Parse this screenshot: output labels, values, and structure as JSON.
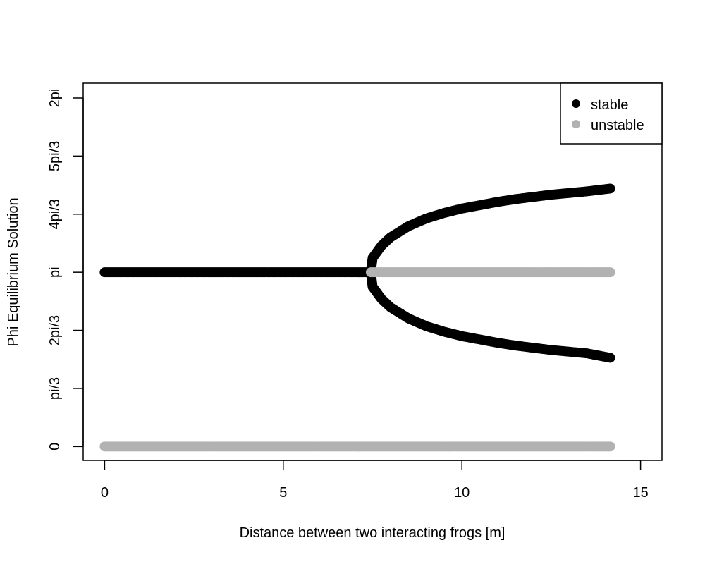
{
  "chart_data": {
    "type": "scatter",
    "title": "",
    "xlabel": "Distance between two interacting frogs [m]",
    "ylabel": "Phi Equilibrium Solution",
    "xlim": [
      -0.6,
      15.6
    ],
    "ylim": [
      -0.25,
      6.55
    ],
    "grid": false,
    "legend_position": "top-right",
    "x_ticks": [
      {
        "value": 0,
        "label": "0"
      },
      {
        "value": 5,
        "label": "5"
      },
      {
        "value": 10,
        "label": "10"
      },
      {
        "value": 15,
        "label": "15"
      }
    ],
    "y_ticks": [
      {
        "value": 0,
        "label": "0"
      },
      {
        "value": 1.0472,
        "label": "pi/3"
      },
      {
        "value": 2.0944,
        "label": "2pi/3"
      },
      {
        "value": 3.1416,
        "label": "pi"
      },
      {
        "value": 4.1888,
        "label": "4pi/3"
      },
      {
        "value": 5.236,
        "label": "5pi/3"
      },
      {
        "value": 6.2832,
        "label": "2pi"
      }
    ],
    "series": [
      {
        "name": "stable",
        "color": "#000000",
        "branches": [
          {
            "x": [
              0,
              1,
              2,
              3,
              4,
              5,
              6,
              7,
              7.45
            ],
            "y": [
              3.1416,
              3.1416,
              3.1416,
              3.1416,
              3.1416,
              3.1416,
              3.1416,
              3.1416,
              3.1416
            ]
          },
          {
            "x": [
              7.45,
              7.5,
              7.75,
              8,
              8.5,
              9,
              9.5,
              10,
              10.5,
              11,
              11.5,
              12,
              12.5,
              13,
              13.5,
              14.15
            ],
            "y": [
              3.1416,
              3.4,
              3.62,
              3.77,
              3.97,
              4.11,
              4.21,
              4.29,
              4.35,
              4.41,
              4.46,
              4.5,
              4.54,
              4.57,
              4.6,
              4.65
            ]
          },
          {
            "x": [
              7.45,
              7.5,
              7.75,
              8,
              8.5,
              9,
              9.5,
              10,
              10.5,
              11,
              11.5,
              12,
              12.5,
              13,
              13.5,
              14.15
            ],
            "y": [
              3.1416,
              2.88,
              2.66,
              2.51,
              2.31,
              2.17,
              2.07,
              1.99,
              1.93,
              1.87,
              1.82,
              1.78,
              1.74,
              1.71,
              1.68,
              1.6
            ]
          }
        ]
      },
      {
        "name": "unstable",
        "color": "#b2b2b2",
        "branches": [
          {
            "x": [
              7.45,
              8,
              9,
              10,
              11,
              12,
              13,
              14.15
            ],
            "y": [
              3.1416,
              3.1416,
              3.1416,
              3.1416,
              3.1416,
              3.1416,
              3.1416,
              3.1416
            ]
          },
          {
            "x": [
              0,
              2,
              4,
              6,
              8,
              10,
              12,
              14.15
            ],
            "y": [
              0,
              0,
              0,
              0,
              0,
              0,
              0,
              0
            ]
          }
        ]
      }
    ]
  }
}
